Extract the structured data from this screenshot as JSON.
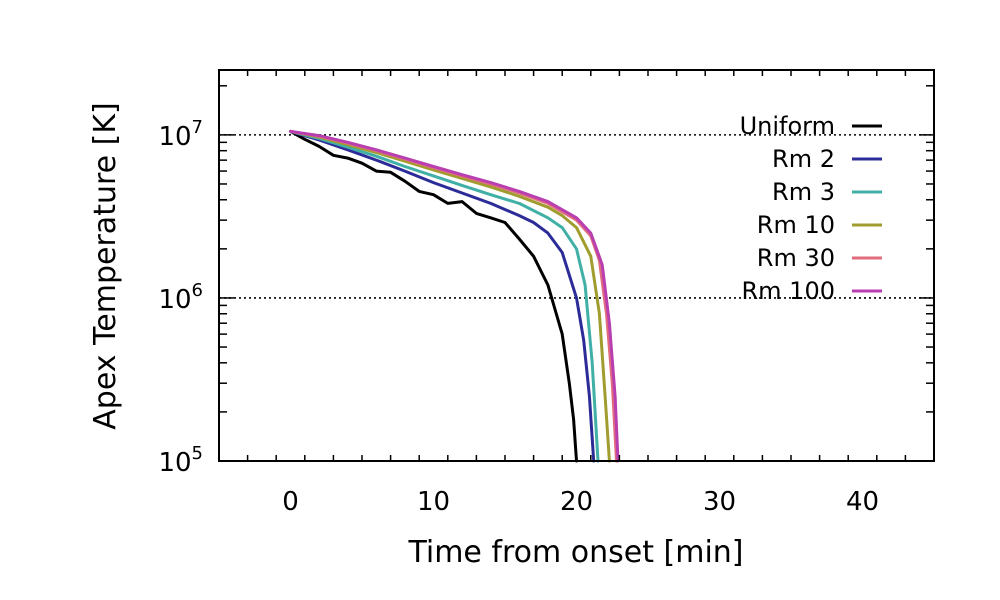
{
  "chart_data": {
    "type": "line",
    "title": "",
    "xlabel": "Time from onset [min]",
    "ylabel": "Apex Temperature [K]",
    "xlim": [
      -5,
      45
    ],
    "ylim": [
      100000.0,
      25000000.0
    ],
    "yscale": "log",
    "x_ticks": [
      0,
      10,
      20,
      30,
      40
    ],
    "x_tick_labels": [
      "0",
      "10",
      "20",
      "30",
      "40"
    ],
    "y_ticks": [
      {
        "value": 100000.0,
        "base": "10",
        "exp": "5"
      },
      {
        "value": 1000000.0,
        "base": "10",
        "exp": "6"
      },
      {
        "value": 10000000.0,
        "base": "10",
        "exp": "7"
      }
    ],
    "reference_lines": [
      1000000.0,
      10000000.0
    ],
    "legend_position": "top-right",
    "series": [
      {
        "name": "Uniform",
        "color": "#000000",
        "x": [
          0,
          1,
          2,
          3,
          4,
          5,
          6,
          7,
          8,
          9,
          10,
          11,
          12,
          13,
          14,
          15,
          16,
          17,
          18,
          19,
          19.5,
          19.8,
          20
        ],
        "y": [
          10500000.0,
          9400000.0,
          8500000.0,
          7500000.0,
          7200000.0,
          6700000.0,
          6000000.0,
          5900000.0,
          5200000.0,
          4500000.0,
          4300000.0,
          3800000.0,
          3900000.0,
          3300000.0,
          3100000.0,
          2900000.0,
          2300000.0,
          1800000.0,
          1200000.0,
          600000.0,
          300000.0,
          180000.0,
          100000.0
        ]
      },
      {
        "name": "Rm 2",
        "color": "#2c2c99",
        "x": [
          0,
          2,
          4,
          6,
          8,
          10,
          12,
          14,
          16,
          17,
          18,
          19,
          20,
          20.5,
          20.9,
          21.2
        ],
        "y": [
          10500000.0,
          9300000.0,
          8100000.0,
          7000000.0,
          6000000.0,
          5100000.0,
          4400000.0,
          3800000.0,
          3200000.0,
          2900000.0,
          2500000.0,
          1900000.0,
          1000000.0,
          550000.0,
          250000.0,
          100000.0
        ]
      },
      {
        "name": "Rm 3",
        "color": "#40b0a6",
        "x": [
          0,
          2,
          4,
          6,
          8,
          10,
          12,
          14,
          16,
          18,
          19,
          20,
          20.6,
          21.1,
          21.5
        ],
        "y": [
          10500000.0,
          9500000.0,
          8400000.0,
          7400000.0,
          6400000.0,
          5600000.0,
          4900000.0,
          4300000.0,
          3800000.0,
          3100000.0,
          2700000.0,
          2000000.0,
          1200000.0,
          400000.0,
          100000.0
        ]
      },
      {
        "name": "Rm 10",
        "color": "#a09d2e",
        "x": [
          0,
          2,
          4,
          6,
          8,
          10,
          12,
          14,
          16,
          18,
          19,
          20,
          21,
          21.6,
          22.0,
          22.3
        ],
        "y": [
          10500000.0,
          9700000.0,
          8700000.0,
          7800000.0,
          6900000.0,
          6100000.0,
          5400000.0,
          4800000.0,
          4200000.0,
          3600000.0,
          3200000.0,
          2700000.0,
          1800000.0,
          800000.0,
          250000.0,
          100000.0
        ]
      },
      {
        "name": "Rm 30",
        "color": "#e06c7e",
        "x": [
          0,
          2,
          4,
          6,
          8,
          10,
          12,
          14,
          16,
          18,
          20,
          21,
          21.6,
          22.1,
          22.5,
          22.8
        ],
        "y": [
          10500000.0,
          9800000.0,
          8900000.0,
          8000000.0,
          7100000.0,
          6300000.0,
          5600000.0,
          5000000.0,
          4400000.0,
          3800000.0,
          3000000.0,
          2400000.0,
          1700000.0,
          800000.0,
          300000.0,
          100000.0
        ]
      },
      {
        "name": "Rm 100",
        "color": "#b93fb0",
        "x": [
          0,
          2,
          4,
          6,
          8,
          10,
          12,
          14,
          16,
          18,
          20,
          21,
          21.8,
          22.3,
          22.7,
          22.9
        ],
        "y": [
          10500000.0,
          9900000.0,
          9000000.0,
          8100000.0,
          7200000.0,
          6400000.0,
          5700000.0,
          5100000.0,
          4500000.0,
          3900000.0,
          3100000.0,
          2500000.0,
          1600000.0,
          700000.0,
          250000.0,
          100000.0
        ]
      }
    ]
  }
}
